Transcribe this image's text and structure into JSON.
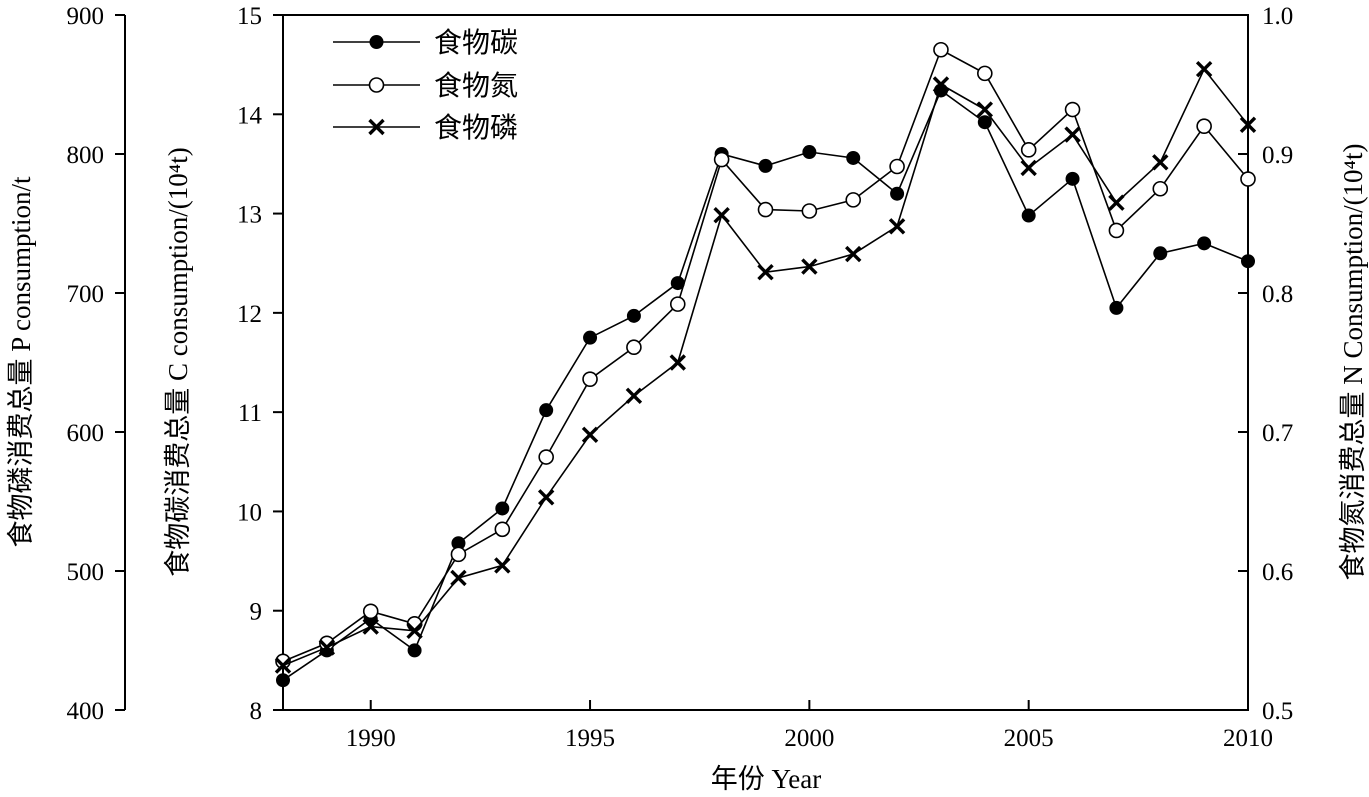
{
  "chart_data": {
    "type": "line",
    "x": [
      1988,
      1989,
      1990,
      1991,
      1992,
      1993,
      1994,
      1995,
      1996,
      1997,
      1998,
      1999,
      2000,
      2001,
      2002,
      2003,
      2004,
      2005,
      2006,
      2007,
      2008,
      2009,
      2010
    ],
    "xlim": [
      1988,
      2010
    ],
    "xticks": [
      "1990",
      "1995",
      "2000",
      "2005",
      "2010"
    ],
    "xlabel": "年份 Year",
    "axes": {
      "c": {
        "label": "食物碳消费总量 C consumption/(10⁴t)",
        "ylim": [
          8,
          15
        ],
        "ticks": [
          "8",
          "9",
          "10",
          "11",
          "12",
          "13",
          "14",
          "15"
        ]
      },
      "p": {
        "label": "食物磷消费总量 P consumption/t",
        "ylim": [
          400,
          900
        ],
        "ticks": [
          "400",
          "500",
          "600",
          "700",
          "800",
          "900"
        ]
      },
      "n": {
        "label": "食物氮消费总量 N Consumption/(10⁴t)",
        "ylim": [
          0.5,
          1.0
        ],
        "ticks": [
          "0.5",
          "0.6",
          "0.7",
          "0.8",
          "0.9",
          "1.0"
        ]
      }
    },
    "series": [
      {
        "name": "食物碳",
        "axis": "c",
        "marker": "filled-circle",
        "values": [
          8.3,
          8.6,
          8.92,
          8.6,
          9.68,
          10.03,
          11.02,
          11.75,
          11.97,
          12.3,
          13.6,
          13.48,
          13.62,
          13.56,
          13.2,
          14.24,
          13.92,
          12.98,
          13.35,
          12.05,
          12.6,
          12.7,
          12.52
        ]
      },
      {
        "name": "食物氮",
        "axis": "n",
        "marker": "open-circle",
        "values": [
          0.535,
          0.548,
          0.571,
          0.562,
          0.612,
          0.63,
          0.682,
          0.738,
          0.761,
          0.792,
          0.896,
          0.86,
          0.859,
          0.867,
          0.891,
          0.975,
          0.958,
          0.903,
          0.932,
          0.845,
          0.875,
          0.92,
          0.882
        ]
      },
      {
        "name": "食物磷",
        "axis": "p",
        "marker": "x",
        "values": [
          432,
          445,
          460,
          457,
          495,
          504,
          553,
          598,
          626,
          650,
          756,
          715,
          719,
          728,
          748,
          850,
          832,
          790,
          814,
          765,
          794,
          861,
          821
        ]
      }
    ],
    "legend": "top-left",
    "grid": false
  }
}
